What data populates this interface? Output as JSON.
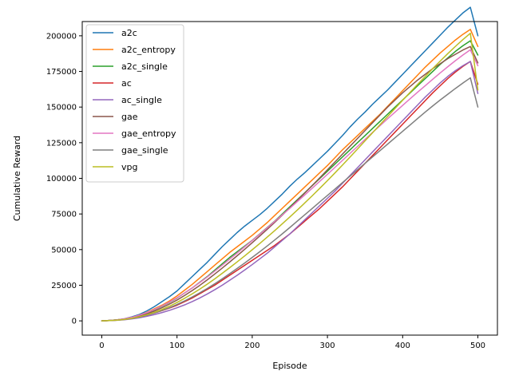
{
  "chart_data": {
    "type": "line",
    "title": "",
    "xlabel": "Episode",
    "ylabel": "Cumulative Reward",
    "xlim": [
      -26,
      526
    ],
    "ylim": [
      -10000,
      210000
    ],
    "xticks": [
      0,
      100,
      200,
      300,
      400,
      500
    ],
    "yticks": [
      0,
      25000,
      50000,
      75000,
      100000,
      125000,
      150000,
      175000,
      200000
    ],
    "grid": false,
    "legend_position": "top-left",
    "x": [
      0,
      10,
      20,
      30,
      40,
      50,
      60,
      70,
      80,
      90,
      100,
      110,
      120,
      130,
      140,
      150,
      160,
      170,
      180,
      190,
      200,
      210,
      220,
      230,
      240,
      250,
      260,
      270,
      280,
      290,
      300,
      310,
      320,
      330,
      340,
      350,
      360,
      370,
      380,
      390,
      400,
      410,
      420,
      430,
      440,
      450,
      460,
      470,
      480,
      490,
      500
    ],
    "series": [
      {
        "name": "a2c",
        "color": "#1f77b4",
        "values": [
          0,
          300,
          700,
          1500,
          2800,
          4500,
          7000,
          10000,
          13500,
          17000,
          21000,
          26000,
          31000,
          36000,
          41000,
          46500,
          52000,
          57000,
          62000,
          66500,
          70500,
          74500,
          79000,
          84000,
          89000,
          94500,
          99500,
          104000,
          109000,
          114000,
          119000,
          124500,
          130000,
          136000,
          141500,
          146500,
          152000,
          157000,
          162000,
          167500,
          173000,
          178500,
          184000,
          189500,
          195000,
          200500,
          206000,
          211000,
          216000,
          220000,
          200000
        ]
      },
      {
        "name": "a2c_entropy",
        "color": "#ff7f0e",
        "values": [
          0,
          300,
          700,
          1400,
          2500,
          4000,
          6000,
          8500,
          11000,
          14000,
          17500,
          21500,
          25500,
          30000,
          34500,
          39000,
          43500,
          48000,
          52000,
          56000,
          60000,
          64500,
          69000,
          74000,
          79000,
          84000,
          89000,
          94000,
          99000,
          104000,
          109000,
          114500,
          120000,
          125000,
          130000,
          135000,
          140000,
          145000,
          150500,
          156000,
          161500,
          167000,
          172500,
          178000,
          183000,
          188000,
          192500,
          197000,
          201000,
          204500,
          192500
        ]
      },
      {
        "name": "a2c_single",
        "color": "#2ca02c",
        "values": [
          0,
          300,
          700,
          1300,
          2300,
          3700,
          5500,
          7800,
          10300,
          13000,
          16000,
          19500,
          23000,
          27000,
          31000,
          35500,
          40000,
          44500,
          48500,
          52500,
          56500,
          61000,
          65500,
          70000,
          75000,
          80000,
          85000,
          90000,
          95000,
          100000,
          105000,
          110000,
          115000,
          120000,
          125000,
          130000,
          135000,
          140000,
          145000,
          150000,
          155000,
          160000,
          165000,
          170000,
          175000,
          180000,
          184500,
          189000,
          193000,
          196500,
          186500
        ]
      },
      {
        "name": "ac",
        "color": "#d62728",
        "values": [
          0,
          200,
          500,
          1000,
          1800,
          2800,
          4000,
          5500,
          7200,
          9000,
          11000,
          13500,
          16000,
          19000,
          22000,
          25000,
          28500,
          32000,
          35500,
          39000,
          42500,
          46000,
          49500,
          53000,
          57000,
          61000,
          65500,
          70000,
          74500,
          79000,
          84000,
          89000,
          94000,
          99500,
          105000,
          110500,
          116000,
          121500,
          127000,
          132500,
          138000,
          143500,
          149000,
          154500,
          160000,
          165000,
          170000,
          174500,
          178500,
          182000,
          166000
        ]
      },
      {
        "name": "ac_single",
        "color": "#9467bd",
        "values": [
          0,
          200,
          400,
          800,
          1400,
          2200,
          3200,
          4400,
          5800,
          7400,
          9200,
          11200,
          13500,
          16000,
          18800,
          21800,
          25000,
          28500,
          32000,
          35700,
          39500,
          43500,
          47500,
          52000,
          56500,
          61000,
          66000,
          71000,
          76000,
          81000,
          86000,
          91000,
          96500,
          102000,
          107500,
          113000,
          118500,
          124000,
          129500,
          135000,
          140500,
          146000,
          151500,
          157000,
          162000,
          167000,
          171500,
          175500,
          179000,
          182000,
          159500
        ]
      },
      {
        "name": "gae",
        "color": "#8c564b",
        "values": [
          0,
          300,
          600,
          1200,
          2100,
          3300,
          4900,
          6900,
          9200,
          11800,
          14600,
          17800,
          21200,
          24800,
          28700,
          32800,
          37000,
          41300,
          45700,
          50200,
          54800,
          59500,
          64300,
          69200,
          74200,
          79300,
          84500,
          89800,
          95100,
          100500,
          106000,
          111500,
          117000,
          122500,
          128000,
          133500,
          139000,
          144500,
          150000,
          155000,
          160000,
          164500,
          169000,
          173000,
          177000,
          180500,
          184000,
          187000,
          190000,
          192500,
          181000
        ]
      },
      {
        "name": "gae_entropy",
        "color": "#e377c2",
        "values": [
          0,
          300,
          700,
          1400,
          2500,
          4000,
          5800,
          8000,
          10500,
          13200,
          16200,
          19500,
          23000,
          26800,
          30700,
          34800,
          39000,
          43300,
          47600,
          52000,
          56400,
          60800,
          65300,
          69800,
          74400,
          79000,
          83700,
          88400,
          93200,
          98000,
          102800,
          107700,
          112600,
          117500,
          122400,
          127300,
          132200,
          137000,
          141800,
          146500,
          151200,
          155900,
          160500,
          165000,
          169500,
          174000,
          178300,
          182500,
          186500,
          190200,
          179000
        ]
      },
      {
        "name": "gae_single",
        "color": "#7f7f7f",
        "values": [
          0,
          200,
          500,
          1000,
          1700,
          2700,
          4000,
          5500,
          7300,
          9300,
          11500,
          14000,
          16700,
          19600,
          22700,
          26000,
          29500,
          33100,
          36800,
          40600,
          44500,
          48500,
          52600,
          56800,
          61100,
          65500,
          70000,
          74500,
          79000,
          83500,
          88000,
          92500,
          97000,
          101500,
          106000,
          110500,
          115000,
          119500,
          124000,
          128500,
          133000,
          137500,
          142000,
          146500,
          150800,
          155000,
          159000,
          163000,
          166800,
          170500,
          150000
        ]
      },
      {
        "name": "vpg",
        "color": "#bcbd22",
        "values": [
          0,
          200,
          500,
          1000,
          1800,
          2900,
          4300,
          6000,
          8000,
          10300,
          12900,
          15800,
          18900,
          22200,
          25700,
          29400,
          33300,
          37300,
          41400,
          45600,
          49900,
          54300,
          58800,
          63400,
          68100,
          72900,
          77800,
          82800,
          87900,
          93100,
          98400,
          103800,
          109300,
          114900,
          120600,
          126300,
          132000,
          137700,
          143400,
          149100,
          154800,
          160400,
          166000,
          171500,
          177000,
          182300,
          187500,
          192500,
          197300,
          201800,
          162000
        ]
      }
    ]
  }
}
